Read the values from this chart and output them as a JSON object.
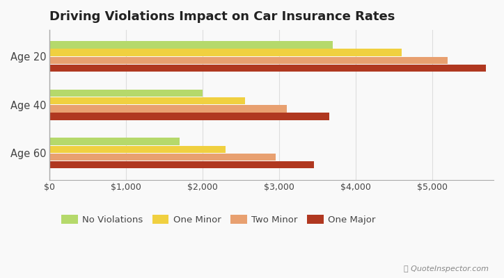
{
  "title": "Driving Violations Impact on Car Insurance Rates",
  "categories": [
    "Age 20",
    "Age 40",
    "Age 60"
  ],
  "series": {
    "No Violations": [
      3700,
      2000,
      1700
    ],
    "One Minor": [
      4600,
      2550,
      2300
    ],
    "Two Minor": [
      5200,
      3100,
      2950
    ],
    "One Major": [
      5700,
      3650,
      3450
    ]
  },
  "colors": {
    "No Violations": "#b5d96b",
    "One Minor": "#f0d040",
    "Two Minor": "#e8a070",
    "One Major": "#b03820"
  },
  "xlim": [
    0,
    5800
  ],
  "xtick_values": [
    0,
    1000,
    2000,
    3000,
    4000,
    5000
  ],
  "background_color": "#f9f9f9",
  "bar_height": 0.15,
  "title_fontsize": 13,
  "legend_fontsize": 9.5,
  "watermark": "QuoteInspector.com"
}
